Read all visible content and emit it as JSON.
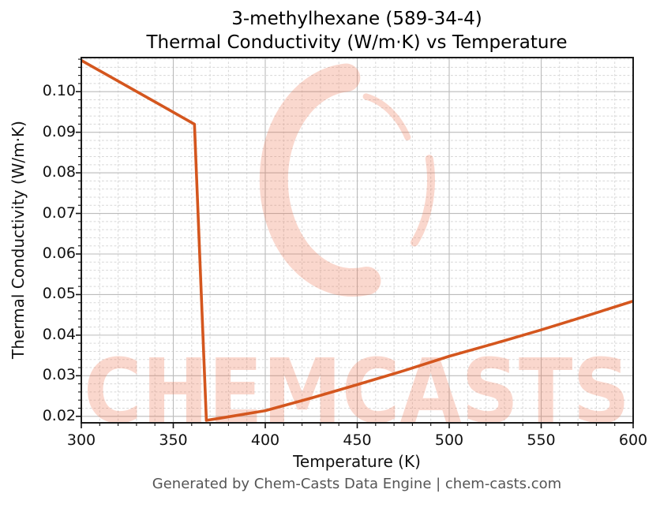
{
  "title": {
    "line1": "3-methylhexane (589-34-4)",
    "line2": "Thermal Conductivity (W/m·K) vs Temperature"
  },
  "footer": "Generated by Chem-Casts Data Engine | chem-casts.com",
  "watermark": {
    "text": "CHEMCASTS",
    "logo": "chemcasts-c-swirl-logo",
    "color": "#ee6f4a",
    "opacity": "0.27"
  },
  "chart_data": {
    "type": "line",
    "title": "3-methylhexane (589-34-4) Thermal Conductivity (W/m·K) vs Temperature",
    "xlabel": "Temperature (K)",
    "ylabel": "Thermal Conductivity (W/m·K)",
    "xlim": [
      300,
      600
    ],
    "ylim": [
      0.0184,
      0.1084
    ],
    "x_ticks": [
      300,
      350,
      400,
      450,
      500,
      550,
      600
    ],
    "y_ticks": [
      0.02,
      0.03,
      0.04,
      0.05,
      0.06,
      0.07,
      0.08,
      0.09,
      0.1
    ],
    "minor_x_step": 10,
    "minor_y_step": 0.002,
    "grid": true,
    "legend": "none",
    "line_color": "#d4561e",
    "line_width": 3.6,
    "series": [
      {
        "name": "thermal-conductivity-vs-temperature",
        "points": [
          [
            300,
            0.1077
          ],
          [
            320,
            0.1026
          ],
          [
            340,
            0.0975
          ],
          [
            361.5,
            0.092
          ],
          [
            368,
            0.019
          ],
          [
            375,
            0.0195
          ],
          [
            400,
            0.0214
          ],
          [
            425,
            0.0245
          ],
          [
            450,
            0.0278
          ],
          [
            475,
            0.0312
          ],
          [
            500,
            0.0348
          ],
          [
            525,
            0.038
          ],
          [
            550,
            0.0413
          ],
          [
            575,
            0.0448
          ],
          [
            600,
            0.0484
          ]
        ]
      }
    ]
  }
}
